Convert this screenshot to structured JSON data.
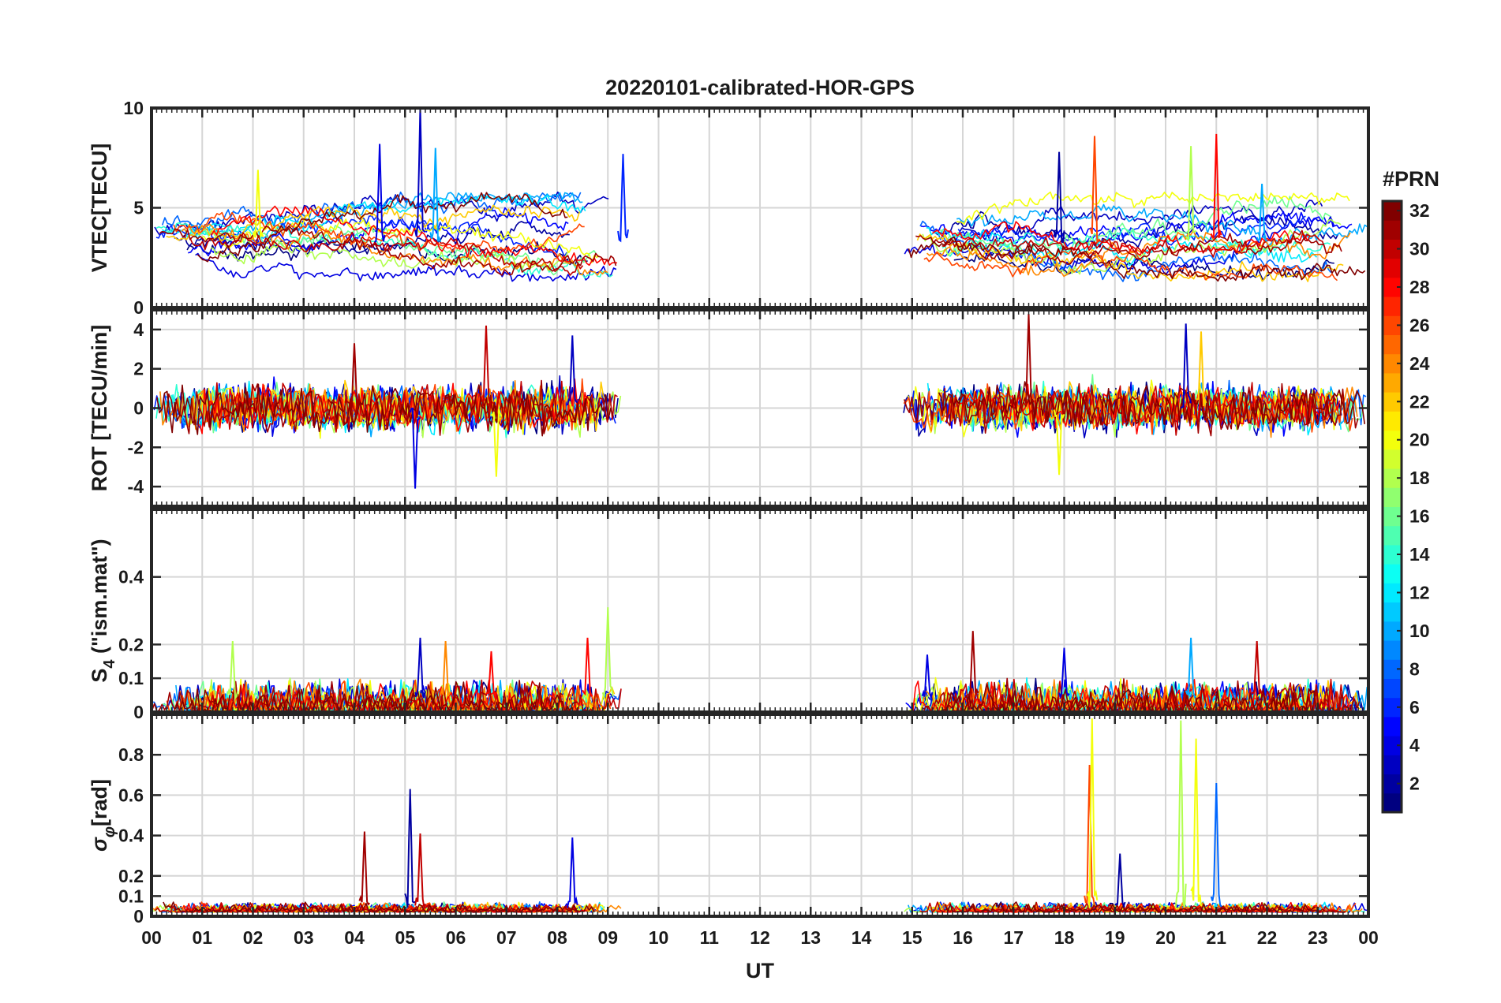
{
  "chart_data": {
    "type": "line",
    "title": "20220101-calibrated-HOR-GPS",
    "xlabel": "UT",
    "x_ticks": [
      "00",
      "01",
      "02",
      "03",
      "04",
      "05",
      "06",
      "07",
      "08",
      "09",
      "10",
      "11",
      "12",
      "13",
      "14",
      "15",
      "16",
      "17",
      "18",
      "19",
      "20",
      "21",
      "22",
      "23",
      "00"
    ],
    "x_range_hours": [
      0,
      24
    ],
    "data_windows_hours": [
      [
        0,
        9.3
      ],
      [
        14.8,
        24
      ]
    ],
    "grid": true,
    "panels": [
      {
        "id": "vtec",
        "ylabel": "VTEC[TECU]",
        "ylim": [
          0,
          10
        ],
        "yticks": [
          0,
          5,
          10
        ],
        "ytick_labels": [
          "0",
          "5",
          "10"
        ],
        "baseline_range": [
          1.5,
          5.0
        ],
        "peak_points": [
          {
            "x": 2.1,
            "y": 6.9,
            "prn": 20
          },
          {
            "x": 4.5,
            "y": 8.2,
            "prn": 4
          },
          {
            "x": 5.3,
            "y": 10.0,
            "prn": 3
          },
          {
            "x": 5.6,
            "y": 8.0,
            "prn": 10
          },
          {
            "x": 9.3,
            "y": 7.7,
            "prn": 6
          },
          {
            "x": 17.9,
            "y": 7.8,
            "prn": 2
          },
          {
            "x": 18.6,
            "y": 8.6,
            "prn": 26
          },
          {
            "x": 20.5,
            "y": 8.1,
            "prn": 18
          },
          {
            "x": 21.0,
            "y": 8.7,
            "prn": 28
          },
          {
            "x": 21.9,
            "y": 6.2,
            "prn": 10
          }
        ]
      },
      {
        "id": "rot",
        "ylabel": "ROT [TECU/min]",
        "ylim": [
          -5,
          5
        ],
        "yticks": [
          -4,
          -2,
          0,
          2,
          4
        ],
        "ytick_labels": [
          "-4",
          "-2",
          "0",
          "2",
          "4"
        ],
        "baseline_range": [
          -1.0,
          1.0
        ],
        "peak_points": [
          {
            "x": 4.0,
            "y": 3.3,
            "prn": 31
          },
          {
            "x": 5.2,
            "y": -4.1,
            "prn": 4
          },
          {
            "x": 6.6,
            "y": 4.2,
            "prn": 30
          },
          {
            "x": 6.8,
            "y": -3.5,
            "prn": 20
          },
          {
            "x": 8.3,
            "y": 3.7,
            "prn": 3
          },
          {
            "x": 17.3,
            "y": 4.8,
            "prn": 31
          },
          {
            "x": 17.9,
            "y": -3.4,
            "prn": 20
          },
          {
            "x": 20.4,
            "y": 4.3,
            "prn": 3
          },
          {
            "x": 20.7,
            "y": 3.9,
            "prn": 22
          }
        ]
      },
      {
        "id": "s4",
        "ylabel": "S4 (\"ism.mat\")",
        "ylabel_main": "S",
        "ylabel_sub": "4",
        "ylabel_rest": " (\"ism.mat\")",
        "ylim": [
          0,
          0.6
        ],
        "yticks": [
          0,
          0.1,
          0.2,
          0.4
        ],
        "ytick_labels": [
          "0",
          "0.1",
          "0.2",
          "0.4"
        ],
        "baseline_range": [
          0.0,
          0.08
        ],
        "peak_points": [
          {
            "x": 1.6,
            "y": 0.21,
            "prn": 18
          },
          {
            "x": 5.3,
            "y": 0.22,
            "prn": 3
          },
          {
            "x": 5.8,
            "y": 0.21,
            "prn": 24
          },
          {
            "x": 6.7,
            "y": 0.18,
            "prn": 28
          },
          {
            "x": 8.6,
            "y": 0.22,
            "prn": 28
          },
          {
            "x": 9.0,
            "y": 0.31,
            "prn": 18
          },
          {
            "x": 15.3,
            "y": 0.17,
            "prn": 4
          },
          {
            "x": 16.2,
            "y": 0.24,
            "prn": 31
          },
          {
            "x": 18.0,
            "y": 0.19,
            "prn": 4
          },
          {
            "x": 20.5,
            "y": 0.22,
            "prn": 10
          },
          {
            "x": 21.8,
            "y": 0.21,
            "prn": 30
          }
        ]
      },
      {
        "id": "sigma_phi",
        "ylabel": "σφ[rad]",
        "ylabel_main": "σ",
        "ylabel_sub": "φ",
        "ylabel_rest": "[rad]",
        "ylim": [
          0,
          1.0
        ],
        "yticks": [
          0,
          0.1,
          0.2,
          0.4,
          0.6,
          0.8
        ],
        "ytick_labels": [
          "0",
          "0.1",
          "0.2",
          "0.4",
          "0.6",
          "0.8"
        ],
        "baseline_range": [
          0.02,
          0.06
        ],
        "peak_points": [
          {
            "x": 4.2,
            "y": 0.42,
            "prn": 31
          },
          {
            "x": 5.1,
            "y": 0.63,
            "prn": 2
          },
          {
            "x": 5.3,
            "y": 0.41,
            "prn": 30
          },
          {
            "x": 8.3,
            "y": 0.39,
            "prn": 4
          },
          {
            "x": 18.5,
            "y": 0.75,
            "prn": 26
          },
          {
            "x": 18.55,
            "y": 0.98,
            "prn": 20
          },
          {
            "x": 19.1,
            "y": 0.31,
            "prn": 2
          },
          {
            "x": 20.3,
            "y": 0.97,
            "prn": 18
          },
          {
            "x": 20.6,
            "y": 0.88,
            "prn": 20
          },
          {
            "x": 21.0,
            "y": 0.66,
            "prn": 8
          }
        ]
      }
    ],
    "colorbar": {
      "title": "#PRN",
      "range": [
        1,
        32
      ],
      "ticks": [
        2,
        4,
        6,
        8,
        10,
        12,
        14,
        16,
        18,
        20,
        22,
        24,
        26,
        28,
        30,
        32
      ],
      "colormap": "jet"
    }
  }
}
